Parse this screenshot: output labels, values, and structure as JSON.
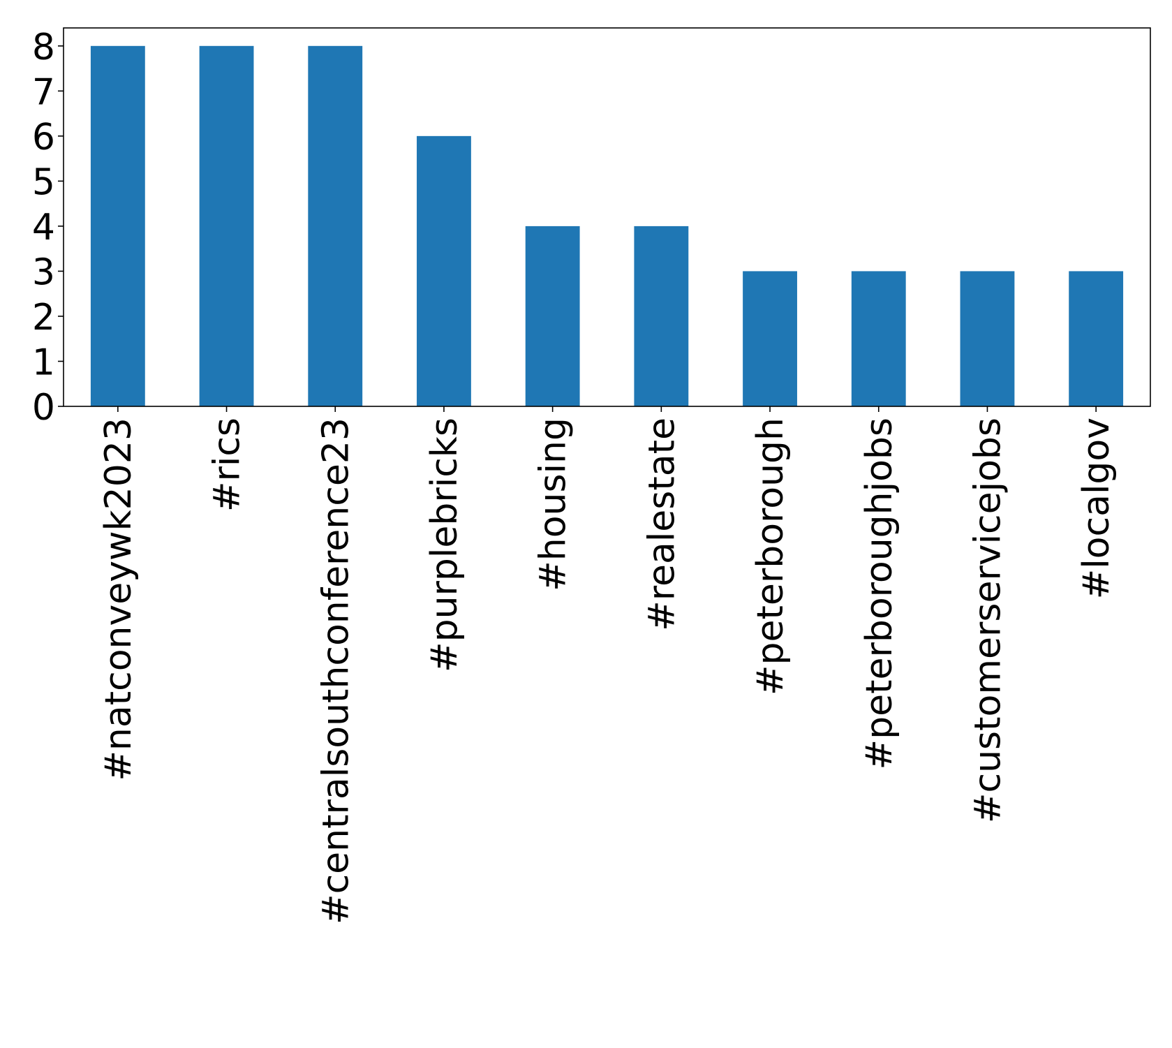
{
  "chart_data": {
    "type": "bar",
    "title": "",
    "xlabel": "",
    "ylabel": "",
    "categories": [
      "#natconveywk2023",
      "#rics",
      "#centralsouthconference23",
      "#purplebricks",
      "#housing",
      "#realestate",
      "#peterborough",
      "#peterboroughjobs",
      "#customerservicejobs",
      "#localgov"
    ],
    "values": [
      8,
      8,
      8,
      6,
      4,
      4,
      3,
      3,
      3,
      3
    ],
    "ylim": [
      0,
      8.4
    ],
    "yticks": [
      0,
      1,
      2,
      3,
      4,
      5,
      6,
      7,
      8
    ],
    "grid": false,
    "legend": "none",
    "bar_color": "#1f77b4",
    "x_tick_rotation": "vertical"
  }
}
